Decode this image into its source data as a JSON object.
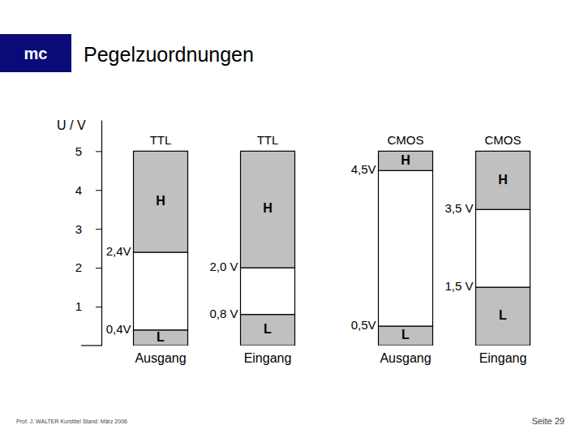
{
  "page": {
    "logo": "mc",
    "footer_left": "Prof. J. WALTER  Kurstitel  Stand: März 2006",
    "footer_right": "Seite 29"
  },
  "chart_data": {
    "type": "bar",
    "title": "Pegelzuordnungen",
    "y_label": "U / V",
    "stacked": true,
    "groups": [
      "TTL",
      "TTL",
      "CMOS",
      "CMOS"
    ],
    "categories": [
      "Ausgang",
      "Eingang",
      "Ausgang",
      "Eingang"
    ],
    "series": [
      {
        "name": "L",
        "color": "#c0c0c0",
        "values": [
          0.4,
          0.8,
          0.5,
          1.5
        ]
      },
      {
        "color": "#ffffff",
        "values": [
          2.0,
          1.2,
          4.0,
          2.0
        ]
      },
      {
        "name": "H",
        "color": "#c0c0c0",
        "values": [
          2.6,
          3.0,
          0.5,
          1.5
        ]
      }
    ],
    "annotations": [
      {
        "text": "2,4V",
        "y": 2.4,
        "category": 0
      },
      {
        "text": "0,4V",
        "y": 0.4,
        "category": 0
      },
      {
        "text": "2,0 V",
        "y": 2.0,
        "category": 1
      },
      {
        "text": "0,8 V",
        "y": 0.8,
        "category": 1
      },
      {
        "text": "4,5V",
        "y": 4.5,
        "category": 2
      },
      {
        "text": "0,5V",
        "y": 0.5,
        "category": 2
      },
      {
        "text": "3,5 V",
        "y": 3.5,
        "category": 3
      },
      {
        "text": "1,5 V",
        "y": 1.5,
        "category": 3
      }
    ],
    "ylim": [
      0,
      5.8
    ],
    "yticks": [
      1,
      2,
      3,
      4,
      5
    ]
  }
}
